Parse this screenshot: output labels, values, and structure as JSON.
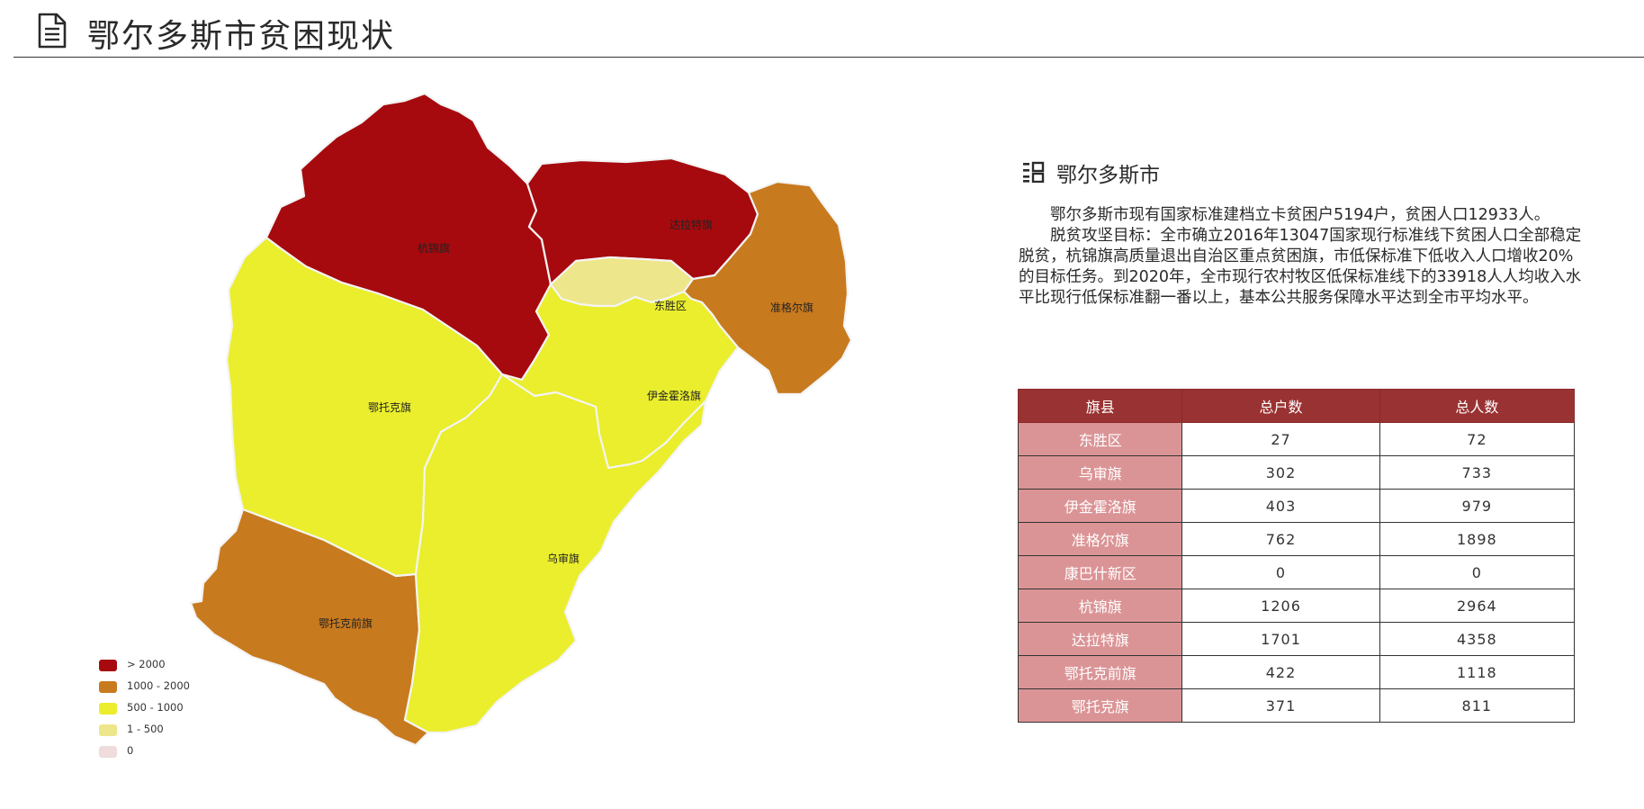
{
  "header": {
    "title": "鄂尔多斯市贫困现状",
    "icon": "document-icon"
  },
  "map": {
    "regions": [
      {
        "name": "杭锦旗",
        "households": 1206,
        "category": "> 2000",
        "color": "#a60a0e"
      },
      {
        "name": "达拉特旗",
        "households": 1701,
        "category": "> 2000",
        "color": "#a60a0e"
      },
      {
        "name": "准格尔旗",
        "households": 762,
        "category": "1000 - 2000",
        "color": "#c87a1e"
      },
      {
        "name": "鄂托克前旗",
        "households": 422,
        "category": "1000 - 2000",
        "color": "#c87a1e"
      },
      {
        "name": "鄂托克旗",
        "households": 371,
        "category": "500 - 1000",
        "color": "#eaee2c"
      },
      {
        "name": "伊金霍洛旗",
        "households": 403,
        "category": "500 - 1000",
        "color": "#eaee2c"
      },
      {
        "name": "乌审旗",
        "households": 302,
        "category": "500 - 1000",
        "color": "#eaee2c"
      },
      {
        "name": "东胜区",
        "households": 27,
        "category": "1 - 500",
        "color": "#ede68a"
      }
    ],
    "legend": [
      {
        "label": "> 2000",
        "color": "#a60a0e"
      },
      {
        "label": "1000 - 2000",
        "color": "#c87a1e"
      },
      {
        "label": "500 - 1000",
        "color": "#eaee2c"
      },
      {
        "label": "1 - 500",
        "color": "#ede68a"
      },
      {
        "label": "0",
        "color": "#f0dcdc"
      }
    ]
  },
  "info": {
    "icon": "list-grid-icon",
    "title": "鄂尔多斯市",
    "paragraphs": [
      "鄂尔多斯市现有国家标准建档立卡贫困户5194户，贫困人口12933人。",
      "脱贫攻坚目标：全市确立2016年13047国家现行标准线下贫困人口全部稳定脱贫，杭锦旗高质量退出自治区重点贫困旗，市低保标准下低收入人口增收20%的目标任务。到2020年，全市现行农村牧区低保标准线下的33918人人均收入水平比现行低保标准翻一番以上，基本公共服务保障水平达到全市平均水平。"
    ]
  },
  "table": {
    "headers": [
      "旗县",
      "总户数",
      "总人数"
    ],
    "rows": [
      [
        "东胜区",
        "27",
        "72"
      ],
      [
        "乌审旗",
        "302",
        "733"
      ],
      [
        "伊金霍洛旗",
        "403",
        "979"
      ],
      [
        "准格尔旗",
        "762",
        "1898"
      ],
      [
        "康巴什新区",
        "0",
        "0"
      ],
      [
        "杭锦旗",
        "1206",
        "2964"
      ],
      [
        "达拉特旗",
        "1701",
        "4358"
      ],
      [
        "鄂托克前旗",
        "422",
        "1118"
      ],
      [
        "鄂托克旗",
        "371",
        "811"
      ]
    ],
    "header_color": "#993232",
    "name_cell_color": "#db9496"
  }
}
